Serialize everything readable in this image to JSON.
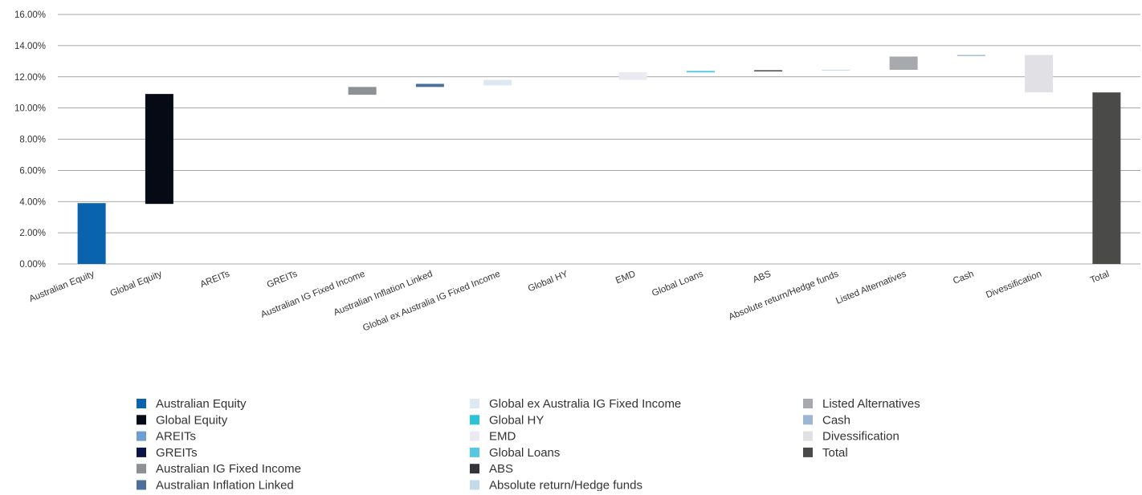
{
  "chart_data": {
    "type": "bar",
    "subtype": "waterfall",
    "ylim": [
      0,
      16
    ],
    "y_ticks": [
      "0.00%",
      "2.00%",
      "4.00%",
      "6.00%",
      "8.00%",
      "10.00%",
      "12.00%",
      "14.00%",
      "16.00%"
    ],
    "y_tick_values": [
      0,
      2,
      4,
      6,
      8,
      10,
      12,
      14,
      16
    ],
    "grid": true,
    "legend_position": "bottom",
    "categories": [
      "Australian Equity",
      "Global Equity",
      "AREITs",
      "GREITs",
      "Australian IG Fixed Income",
      "Australian Inflation Linked",
      "Global ex Australia IG Fixed Income",
      "Global HY",
      "EMD",
      "Global Loans",
      "ABS",
      "Absolute return/Hedge funds",
      "Listed Alternatives",
      "Cash",
      "Divessification",
      "Total"
    ],
    "bars": [
      {
        "start": 0.0,
        "end": 3.9,
        "color": "#0a63ad"
      },
      {
        "start": 3.85,
        "end": 10.9,
        "color": "#050a14"
      },
      {
        "start": 10.9,
        "end": 10.9,
        "color": "#6f9fd0"
      },
      {
        "start": 10.9,
        "end": 10.9,
        "color": "#0b1444"
      },
      {
        "start": 10.85,
        "end": 11.35,
        "color": "#8c9196"
      },
      {
        "start": 11.35,
        "end": 11.55,
        "color": "#4a6f9a"
      },
      {
        "start": 11.45,
        "end": 11.8,
        "color": "#dde8f3"
      },
      {
        "start": 11.8,
        "end": 11.8,
        "color": "#2bc3d6"
      },
      {
        "start": 11.8,
        "end": 12.3,
        "color": "#ebeaf2"
      },
      {
        "start": 12.28,
        "end": 12.38,
        "color": "#58c7e3"
      },
      {
        "start": 12.35,
        "end": 12.42,
        "color": "#333438"
      },
      {
        "start": 12.4,
        "end": 12.45,
        "color": "#c3d9ec"
      },
      {
        "start": 12.45,
        "end": 13.3,
        "color": "#a7a9ad"
      },
      {
        "start": 13.33,
        "end": 13.4,
        "color": "#9cb6d4"
      },
      {
        "start": 11.0,
        "end": 13.4,
        "color": "#e1e1e5"
      },
      {
        "start": 0.0,
        "end": 11.0,
        "color": "#4a4a48"
      }
    ],
    "legend": [
      {
        "label": "Australian Equity",
        "color": "#0a63ad"
      },
      {
        "label": "Global Equity",
        "color": "#050a14"
      },
      {
        "label": "AREITs",
        "color": "#6f9fd0"
      },
      {
        "label": "GREITs",
        "color": "#0b1444"
      },
      {
        "label": "Australian IG Fixed Income",
        "color": "#8c9196"
      },
      {
        "label": "Australian Inflation Linked",
        "color": "#4a6f9a"
      },
      {
        "label": "Global ex Australia IG Fixed Income",
        "color": "#dde8f3"
      },
      {
        "label": "Global HY",
        "color": "#2bc3d6"
      },
      {
        "label": "EMD",
        "color": "#ebeaf2"
      },
      {
        "label": "Global Loans",
        "color": "#58c7e3"
      },
      {
        "label": "ABS",
        "color": "#333438"
      },
      {
        "label": "Absolute return/Hedge funds",
        "color": "#c3d9ec"
      },
      {
        "label": "Listed Alternatives",
        "color": "#a7a9ad"
      },
      {
        "label": "Cash",
        "color": "#9cb6d4"
      },
      {
        "label": "Divessification",
        "color": "#e1e1e5"
      },
      {
        "label": "Total",
        "color": "#4a4a48"
      }
    ]
  }
}
